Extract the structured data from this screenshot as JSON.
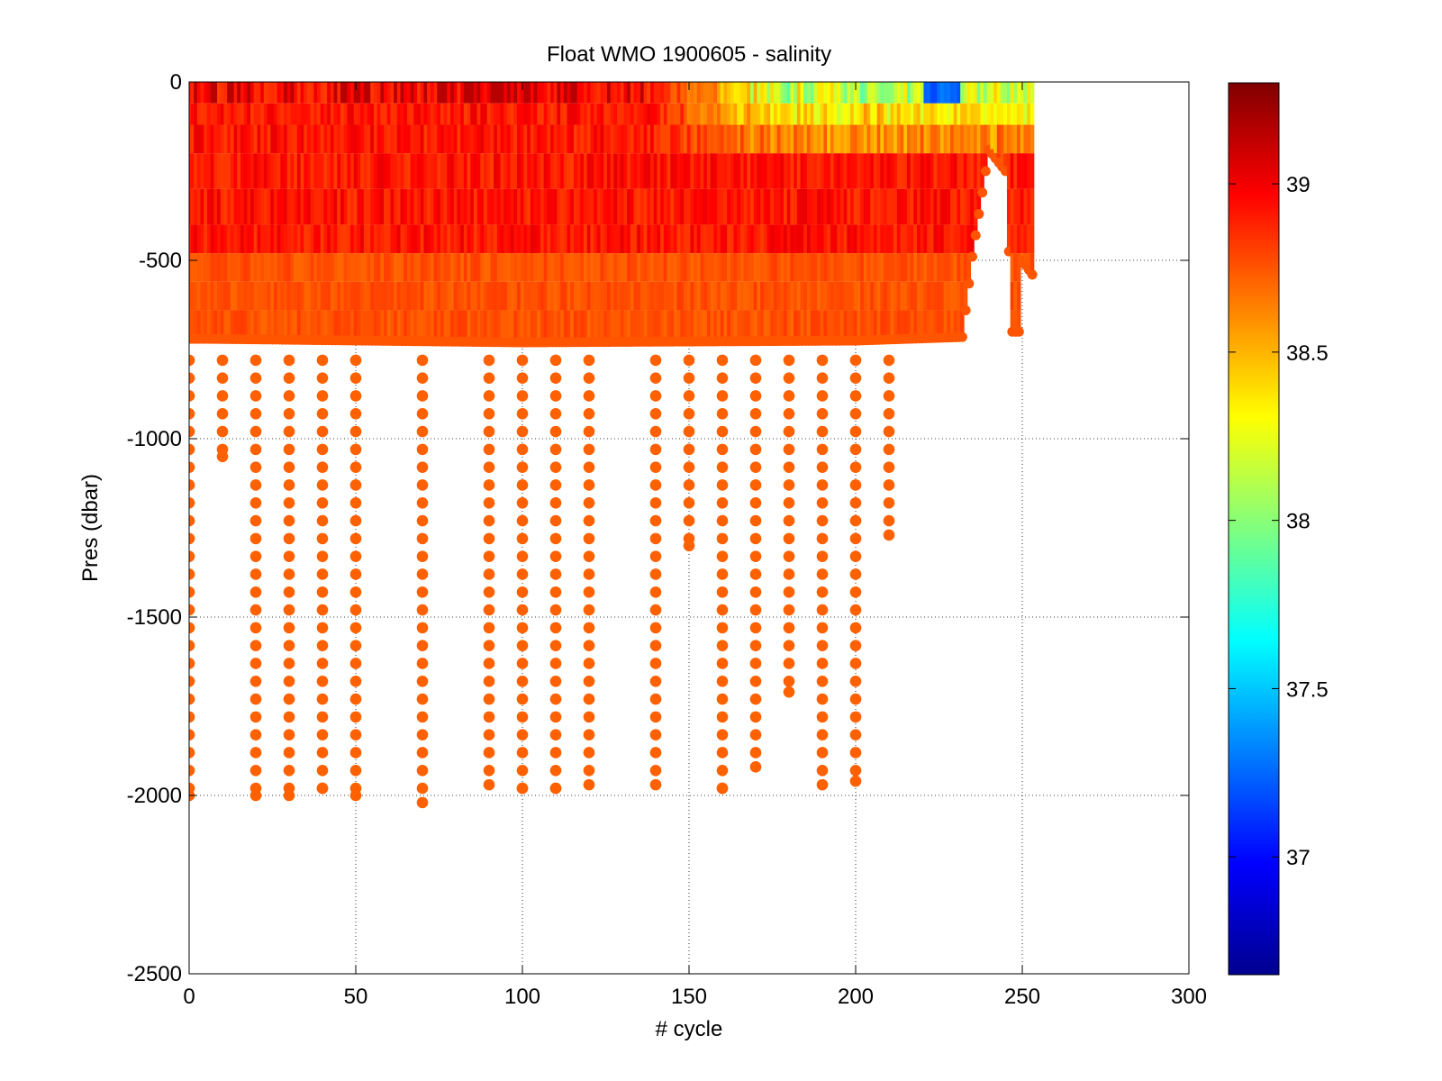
{
  "chart_data": {
    "type": "scatter",
    "title": "Float WMO 1900605 - salinity",
    "xlabel": "# cycle",
    "ylabel": "Pres (dbar)",
    "xlim": [
      0,
      300
    ],
    "ylim": [
      -2500,
      0
    ],
    "x_ticks": [
      "0",
      "50",
      "100",
      "150",
      "200",
      "250",
      "300"
    ],
    "y_ticks": [
      "0",
      "-500",
      "-1000",
      "-1500",
      "-2000",
      "-2500"
    ],
    "grid": true,
    "colormap": "jet",
    "colorbar": {
      "range": [
        36.65,
        39.3
      ],
      "ticks": [
        "37",
        "37.5",
        "38",
        "38.5",
        "39"
      ],
      "tick_values": [
        37,
        37.5,
        38,
        38.5,
        39
      ]
    },
    "dense_band": {
      "note": "continuous profiles every cycle, 0 to ~ -730 dbar, salinity ~38.7-39.2; surface fresher (37.2-38.4) after cycle ~137",
      "max_depth_by_cycle": [
        [
          0,
          -720
        ],
        [
          5,
          -720
        ],
        [
          100,
          -730
        ],
        [
          200,
          -725
        ],
        [
          232,
          -715
        ],
        [
          235,
          -490
        ],
        [
          240,
          -190
        ],
        [
          245,
          -250
        ],
        [
          247,
          -700
        ],
        [
          249,
          -700
        ],
        [
          250,
          -500
        ],
        [
          253,
          -540
        ]
      ],
      "surface_fresh_from_cycle": 137,
      "surface_min_value": 37.2,
      "deep_value": 38.75
    },
    "deep_profiles": [
      {
        "cycle": 0,
        "max_depth": -2000
      },
      {
        "cycle": 10,
        "max_depth": -1050
      },
      {
        "cycle": 20,
        "max_depth": -2000
      },
      {
        "cycle": 30,
        "max_depth": -2000
      },
      {
        "cycle": 40,
        "max_depth": -1980
      },
      {
        "cycle": 50,
        "max_depth": -2000
      },
      {
        "cycle": 70,
        "max_depth": -2020
      },
      {
        "cycle": 90,
        "max_depth": -1970
      },
      {
        "cycle": 100,
        "max_depth": -1980
      },
      {
        "cycle": 110,
        "max_depth": -1980
      },
      {
        "cycle": 120,
        "max_depth": -1970
      },
      {
        "cycle": 140,
        "max_depth": -1970
      },
      {
        "cycle": 150,
        "max_depth": -1300
      },
      {
        "cycle": 160,
        "max_depth": -1980
      },
      {
        "cycle": 170,
        "max_depth": -1920
      },
      {
        "cycle": 180,
        "max_depth": -1710
      },
      {
        "cycle": 190,
        "max_depth": -1970
      },
      {
        "cycle": 200,
        "max_depth": -1960
      },
      {
        "cycle": 210,
        "max_depth": -1270
      }
    ],
    "deep_value": 38.72
  }
}
